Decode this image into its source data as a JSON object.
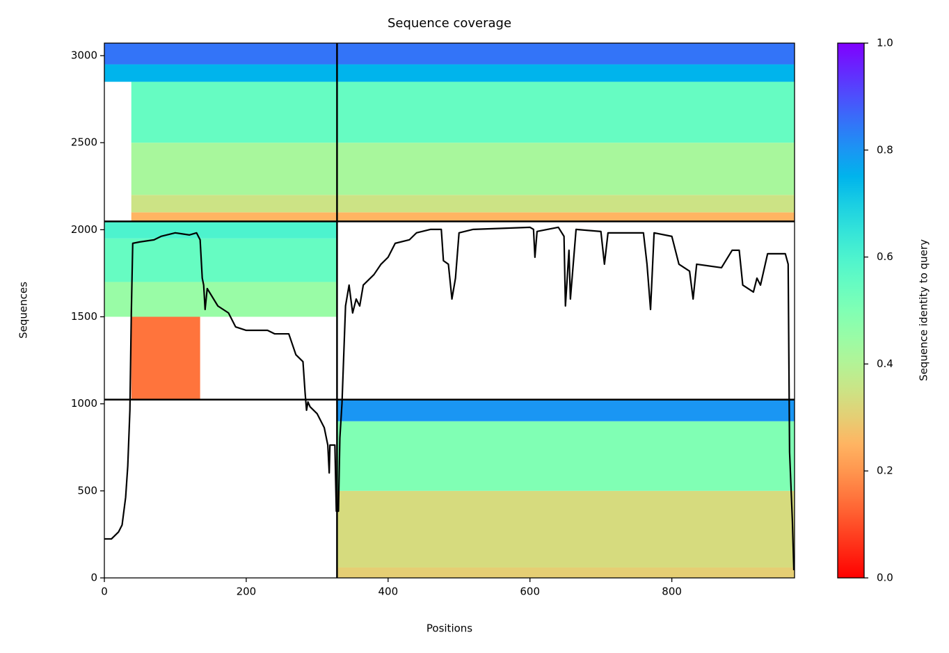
{
  "chart_data": {
    "type": "coverage",
    "title": "Sequence coverage",
    "xlabel": "Positions",
    "ylabel": "Sequences",
    "colorbar_label": "Sequence identity to query",
    "xlim": [
      0,
      973
    ],
    "ylim": [
      0,
      3072
    ],
    "xticks": [
      0,
      200,
      400,
      600,
      800
    ],
    "yticks": [
      0,
      500,
      1000,
      1500,
      2000,
      2500,
      3000
    ],
    "clim": [
      0,
      1
    ],
    "cticks": [
      {
        "value": 0,
        "label": "0.0"
      },
      0.2,
      0.4,
      0.6,
      0.8,
      {
        "value": 1,
        "label": "1.0"
      }
    ],
    "colormap": "rainbow_r",
    "boundaries_x": [
      328
    ],
    "boundaries_y": [
      1024,
      2048
    ],
    "bands": [
      {
        "x": [
          38,
          973
        ],
        "y": [
          2048,
          2100
        ],
        "identity": 0.25
      },
      {
        "x": [
          38,
          973
        ],
        "y": [
          2100,
          2200
        ],
        "identity": 0.35
      },
      {
        "x": [
          38,
          973
        ],
        "y": [
          2200,
          2500
        ],
        "identity": 0.42
      },
      {
        "x": [
          38,
          973
        ],
        "y": [
          2500,
          2850
        ],
        "identity": 0.55
      },
      {
        "x": [
          0,
          973
        ],
        "y": [
          2850,
          2950
        ],
        "identity": 0.75
      },
      {
        "x": [
          0,
          973
        ],
        "y": [
          2950,
          3072
        ],
        "identity": 0.85
      },
      {
        "x": [
          38,
          135
        ],
        "y": [
          1024,
          1500
        ],
        "identity": 0.15
      },
      {
        "x": [
          0,
          328
        ],
        "y": [
          1500,
          1700
        ],
        "identity": 0.45
      },
      {
        "x": [
          0,
          328
        ],
        "y": [
          1700,
          1950
        ],
        "identity": 0.55
      },
      {
        "x": [
          0,
          328
        ],
        "y": [
          1950,
          2048
        ],
        "identity": 0.6
      },
      {
        "x": [
          328,
          973
        ],
        "y": [
          0,
          60
        ],
        "identity": 0.3
      },
      {
        "x": [
          328,
          973
        ],
        "y": [
          60,
          500
        ],
        "identity": 0.33
      },
      {
        "x": [
          328,
          973
        ],
        "y": [
          500,
          900
        ],
        "identity": 0.5
      },
      {
        "x": [
          328,
          973
        ],
        "y": [
          900,
          1024
        ],
        "identity": 0.8
      }
    ],
    "coverage": {
      "color": "#000000",
      "x": [
        0,
        10,
        20,
        25,
        30,
        33,
        36,
        38,
        40,
        50,
        70,
        80,
        100,
        120,
        130,
        135,
        138,
        140,
        142,
        145,
        160,
        175,
        185,
        200,
        230,
        240,
        260,
        265,
        270,
        280,
        283,
        285,
        287,
        290,
        300,
        310,
        315,
        317,
        318,
        325,
        327,
        330,
        332,
        335,
        340,
        345,
        350,
        355,
        360,
        365,
        370,
        380,
        390,
        400,
        410,
        430,
        440,
        460,
        475,
        478,
        485,
        490,
        495,
        500,
        520,
        600,
        605,
        607,
        610,
        640,
        648,
        650,
        655,
        657,
        665,
        700,
        705,
        710,
        760,
        765,
        770,
        775,
        800,
        810,
        825,
        830,
        835,
        870,
        885,
        895,
        900,
        915,
        920,
        925,
        935,
        960,
        964,
        966,
        970,
        972
      ],
      "values": [
        224,
        224,
        264,
        304,
        463,
        643,
        963,
        1522,
        1922,
        1930,
        1942,
        1962,
        1982,
        1970,
        1982,
        1942,
        1722,
        1682,
        1542,
        1662,
        1562,
        1522,
        1442,
        1422,
        1422,
        1402,
        1402,
        1342,
        1282,
        1242,
        1063,
        963,
        1011,
        983,
        943,
        863,
        763,
        603,
        763,
        763,
        383,
        383,
        803,
        1003,
        1562,
        1682,
        1522,
        1602,
        1562,
        1682,
        1702,
        1742,
        1802,
        1842,
        1922,
        1942,
        1982,
        2002,
        2002,
        1822,
        1802,
        1602,
        1722,
        1982,
        2002,
        2014,
        2002,
        1842,
        1990,
        2014,
        1962,
        1562,
        1882,
        1602,
        2002,
        1990,
        1802,
        1982,
        1982,
        1802,
        1542,
        1982,
        1962,
        1802,
        1762,
        1602,
        1802,
        1782,
        1882,
        1882,
        1682,
        1642,
        1722,
        1682,
        1862,
        1862,
        1802,
        723,
        324,
        44
      ]
    }
  }
}
